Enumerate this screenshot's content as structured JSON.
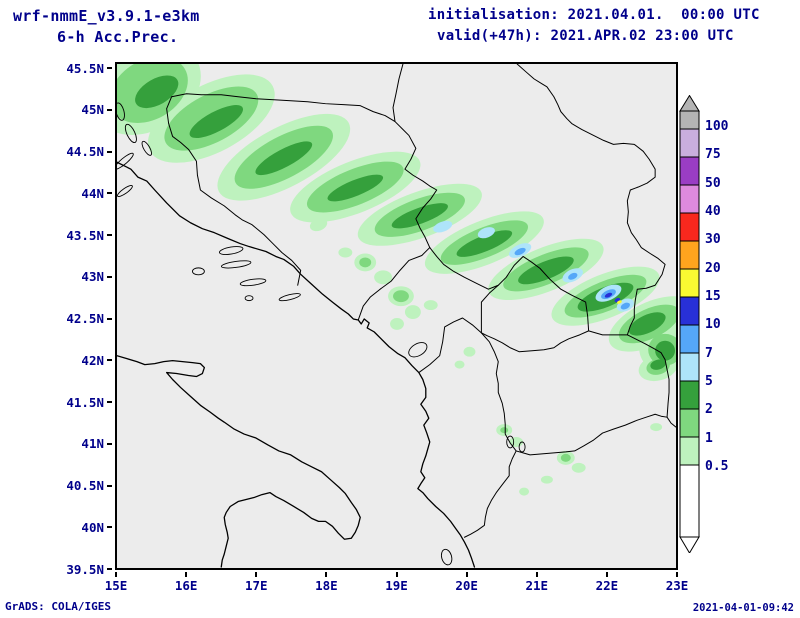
{
  "header": {
    "model": "wrf-nmmE_v3.9.1-e3km",
    "product": "6-h Acc.Prec.",
    "init_label": "initialisation: 2021.04.01.  00:00 UTC",
    "valid_label": "valid(+47h): 2021.APR.02 23:00 UTC"
  },
  "footer": {
    "left": "GrADS: COLA/IGES",
    "right": "2021-04-01-09:42"
  },
  "axes": {
    "lat_labels": [
      "45.5N",
      "45N",
      "44.5N",
      "44N",
      "43.5N",
      "43N",
      "42.5N",
      "42N",
      "41.5N",
      "41N",
      "40.5N",
      "40N",
      "39.5N"
    ],
    "lon_labels": [
      "15E",
      "16E",
      "17E",
      "18E",
      "19E",
      "20E",
      "21E",
      "22E",
      "23E"
    ]
  },
  "chart_data": {
    "type": "heatmap",
    "title": "6-h Acc.Prec.",
    "model": "wrf-nmmE_v3.9.1-e3km",
    "initialisation": "2021.04.01. 00:00 UTC",
    "valid": "2021.APR.02 23:00 UTC (+47h)",
    "map_extent": {
      "lon_min": 15,
      "lon_max": 23,
      "lat_min": 39.5,
      "lat_max": 45.5
    },
    "colorbar": {
      "labels_top_to_bottom": [
        "100",
        "75",
        "50",
        "40",
        "30",
        "20",
        "15",
        "10",
        "7",
        "5",
        "2",
        "1",
        "0.5"
      ],
      "levels_mm": [
        0.5,
        1,
        2,
        5,
        7,
        10,
        15,
        20,
        30,
        40,
        50,
        75,
        100
      ],
      "arrow_top_color": "#b4b4b4",
      "arrow_bottom_color": "#ffffff",
      "segment_colors_top_to_bottom": [
        "#c9aede",
        "#9a3dc4",
        "#de8ade",
        "#f8281e",
        "#ffa41e",
        "#fafa32",
        "#2830d7",
        "#55a7f8",
        "#aee4fa",
        "#35a03c",
        "#7fd87f",
        "#bef2be"
      ]
    },
    "level_colors": {
      "0.5": "#bef2be",
      "1": "#7fd87f",
      "2": "#35a03c",
      "5": "#aee4fa",
      "7": "#55a7f8",
      "10": "#2830d7",
      "15": "#fafa32"
    },
    "precip_blobs_format": "[level_mm, cx, cy, rx, ry, rotation_deg] in plot pixel coords (563x508)",
    "precip_blobs": [
      [
        0.5,
        30,
        25,
        58,
        42,
        -30
      ],
      [
        0.5,
        95,
        55,
        70,
        34,
        -28
      ],
      [
        0.5,
        168,
        94,
        74,
        30,
        -28
      ],
      [
        0.5,
        240,
        124,
        70,
        26,
        -22
      ],
      [
        0.5,
        305,
        152,
        66,
        23,
        -20
      ],
      [
        0.5,
        370,
        180,
        64,
        22,
        -22
      ],
      [
        0.5,
        432,
        207,
        62,
        22,
        -22
      ],
      [
        0.5,
        492,
        234,
        58,
        22,
        -22
      ],
      [
        0.5,
        538,
        262,
        46,
        22,
        -25
      ],
      [
        0.5,
        552,
        287,
        26,
        24,
        0
      ],
      [
        0.5,
        545,
        306,
        20,
        13,
        -15
      ],
      [
        0.5,
        250,
        200,
        11,
        9,
        0
      ],
      [
        0.5,
        268,
        215,
        9,
        7,
        0
      ],
      [
        0.5,
        286,
        234,
        13,
        10,
        0
      ],
      [
        0.5,
        298,
        250,
        8,
        7,
        0
      ],
      [
        0.5,
        282,
        262,
        7,
        6,
        0
      ],
      [
        0.5,
        316,
        243,
        7,
        5,
        0
      ],
      [
        0.5,
        230,
        190,
        7,
        5,
        0
      ],
      [
        0.5,
        203,
        162,
        9,
        6,
        -20
      ],
      [
        0.5,
        355,
        290,
        6,
        5,
        0
      ],
      [
        0.5,
        345,
        303,
        5,
        4,
        0
      ],
      [
        0.5,
        390,
        369,
        8,
        6,
        0
      ],
      [
        0.5,
        402,
        381,
        7,
        5,
        0
      ],
      [
        0.5,
        452,
        397,
        9,
        7,
        0
      ],
      [
        0.5,
        465,
        407,
        7,
        5,
        0
      ],
      [
        0.5,
        433,
        419,
        6,
        4,
        0
      ],
      [
        0.5,
        410,
        431,
        5,
        4,
        0
      ],
      [
        0.5,
        543,
        366,
        6,
        4,
        0
      ],
      [
        1,
        32,
        26,
        42,
        30,
        -30
      ],
      [
        1,
        95,
        55,
        52,
        24,
        -28
      ],
      [
        1,
        168,
        94,
        55,
        21,
        -28
      ],
      [
        1,
        240,
        124,
        52,
        18,
        -22
      ],
      [
        1,
        305,
        152,
        48,
        16,
        -20
      ],
      [
        1,
        370,
        180,
        47,
        15,
        -22
      ],
      [
        1,
        432,
        207,
        46,
        15,
        -22
      ],
      [
        1,
        492,
        234,
        44,
        15,
        -22
      ],
      [
        1,
        536,
        262,
        33,
        15,
        -25
      ],
      [
        1,
        552,
        288,
        17,
        16,
        0
      ],
      [
        1,
        545,
        305,
        12,
        8,
        -15
      ],
      [
        1,
        286,
        234,
        8,
        6,
        0
      ],
      [
        1,
        250,
        200,
        6,
        5,
        0
      ],
      [
        1,
        452,
        397,
        5,
        4,
        0
      ],
      [
        1,
        390,
        369,
        4,
        3,
        0
      ],
      [
        2,
        40,
        28,
        24,
        13,
        -30
      ],
      [
        2,
        100,
        58,
        30,
        10,
        -28
      ],
      [
        2,
        168,
        95,
        32,
        9,
        -28
      ],
      [
        2,
        240,
        125,
        30,
        8,
        -22
      ],
      [
        2,
        305,
        153,
        30,
        8,
        -20
      ],
      [
        2,
        370,
        181,
        30,
        8,
        -22
      ],
      [
        2,
        432,
        208,
        30,
        9,
        -22
      ],
      [
        2,
        492,
        235,
        30,
        10,
        -22
      ],
      [
        2,
        534,
        262,
        20,
        9,
        -25
      ],
      [
        2,
        552,
        289,
        10,
        10,
        0
      ],
      [
        2,
        545,
        303,
        8,
        5,
        -15
      ],
      [
        5,
        328,
        164,
        10,
        5,
        -20
      ],
      [
        5,
        372,
        170,
        9,
        5,
        -20
      ],
      [
        5,
        406,
        188,
        12,
        6,
        -25
      ],
      [
        5,
        459,
        213,
        11,
        6,
        -25
      ],
      [
        5,
        495,
        231,
        14,
        7,
        -25
      ],
      [
        5,
        512,
        243,
        9,
        6,
        -25
      ],
      [
        7,
        406,
        189,
        6,
        3,
        -25
      ],
      [
        7,
        459,
        214,
        5,
        3,
        -25
      ],
      [
        7,
        495,
        232,
        8,
        4,
        -25
      ],
      [
        7,
        512,
        244,
        5,
        3,
        -25
      ],
      [
        10,
        495,
        233,
        4,
        2,
        -25
      ],
      [
        10,
        504,
        238,
        3,
        2,
        -25
      ],
      [
        15,
        506,
        240,
        2.5,
        1.5,
        -25
      ]
    ]
  }
}
